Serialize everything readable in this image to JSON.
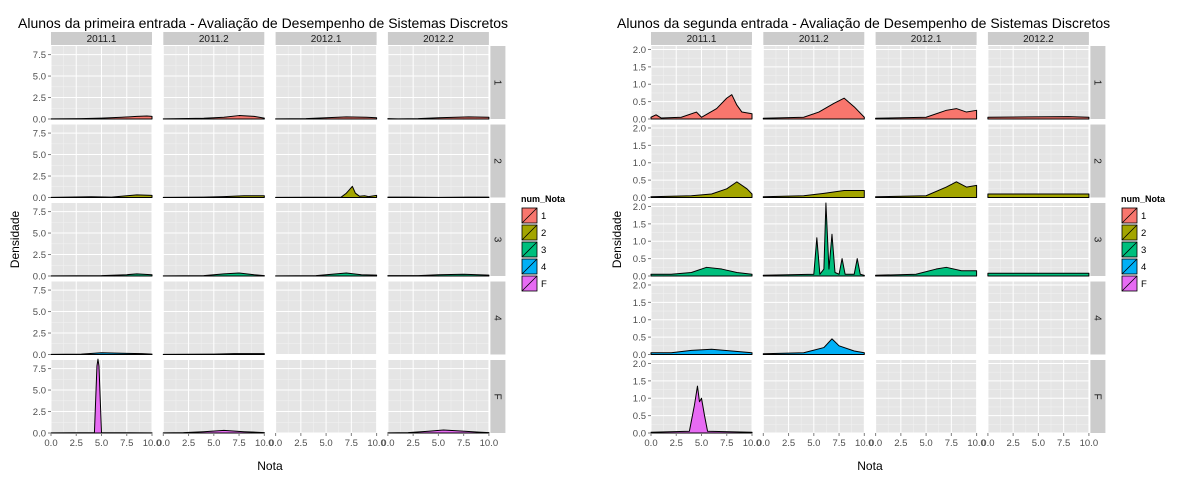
{
  "chart_data": [
    {
      "type": "area",
      "title": "Alunos da primeira entrada -  Avaliação de Desempenho de Sistemas Discretos",
      "xlabel": "Nota",
      "ylabel": "Densidade",
      "columns": [
        "2011.1",
        "2011.2",
        "2012.1",
        "2012.2"
      ],
      "rows": [
        "1",
        "2",
        "3",
        "4",
        "F"
      ],
      "xlim": [
        0,
        10
      ],
      "ylim": [
        0,
        8.5
      ],
      "x_ticks": [
        "0.0",
        "2.5",
        "5.0",
        "7.5",
        "10.0"
      ],
      "y_ticks": [
        "0.0",
        "2.5",
        "5.0",
        "7.5"
      ],
      "y_tick_values": [
        0,
        2.5,
        5,
        7.5
      ],
      "legend": {
        "title": "num_Nota",
        "position": "right",
        "items": [
          "1",
          "2",
          "3",
          "4",
          "F"
        ]
      },
      "grid": true,
      "panels": [
        {
          "col": 0,
          "row": 0,
          "points": [
            [
              0,
              0.02
            ],
            [
              3,
              0.05
            ],
            [
              5,
              0.1
            ],
            [
              7,
              0.2
            ],
            [
              8.5,
              0.3
            ],
            [
              9.5,
              0.35
            ],
            [
              10,
              0.3
            ]
          ]
        },
        {
          "col": 1,
          "row": 0,
          "points": [
            [
              0,
              0.02
            ],
            [
              4,
              0.08
            ],
            [
              6,
              0.2
            ],
            [
              7.5,
              0.4
            ],
            [
              9,
              0.3
            ],
            [
              10,
              0.1
            ]
          ]
        },
        {
          "col": 2,
          "row": 0,
          "points": [
            [
              0,
              0.02
            ],
            [
              3,
              0.05
            ],
            [
              5,
              0.15
            ],
            [
              7,
              0.25
            ],
            [
              9,
              0.2
            ],
            [
              10,
              0.15
            ]
          ]
        },
        {
          "col": 3,
          "row": 0,
          "points": [
            [
              0,
              0.05
            ],
            [
              1,
              0.02
            ],
            [
              3,
              0.05
            ],
            [
              5,
              0.15
            ],
            [
              8,
              0.25
            ],
            [
              10,
              0.2
            ]
          ]
        },
        {
          "col": 0,
          "row": 1,
          "points": [
            [
              0,
              0.02
            ],
            [
              4,
              0.08
            ],
            [
              6,
              0.05
            ],
            [
              7.5,
              0.2
            ],
            [
              8.5,
              0.3
            ],
            [
              10,
              0.25
            ]
          ]
        },
        {
          "col": 1,
          "row": 1,
          "points": [
            [
              0,
              0.02
            ],
            [
              4,
              0.05
            ],
            [
              6,
              0.1
            ],
            [
              8,
              0.2
            ],
            [
              10,
              0.2
            ]
          ]
        },
        {
          "col": 2,
          "row": 1,
          "points": [
            [
              0,
              0.02
            ],
            [
              6.5,
              0.05
            ],
            [
              7,
              0.5
            ],
            [
              7.3,
              0.9
            ],
            [
              7.6,
              1.3
            ],
            [
              7.9,
              0.5
            ],
            [
              8.3,
              0.15
            ],
            [
              8.8,
              0.2
            ],
            [
              9.2,
              0.1
            ],
            [
              10,
              0.25
            ]
          ]
        },
        {
          "col": 3,
          "row": 1,
          "points": [
            [
              0,
              0.05
            ],
            [
              2,
              0.05
            ],
            [
              5,
              0.02
            ],
            [
              8,
              0.05
            ],
            [
              10,
              0.05
            ]
          ]
        },
        {
          "col": 0,
          "row": 2,
          "points": [
            [
              0,
              0.02
            ],
            [
              5,
              0.05
            ],
            [
              7.5,
              0.15
            ],
            [
              8.5,
              0.25
            ],
            [
              10,
              0.15
            ]
          ]
        },
        {
          "col": 1,
          "row": 2,
          "points": [
            [
              0,
              0.02
            ],
            [
              4,
              0.05
            ],
            [
              6,
              0.25
            ],
            [
              7.5,
              0.35
            ],
            [
              9,
              0.15
            ],
            [
              10,
              0.05
            ]
          ]
        },
        {
          "col": 2,
          "row": 2,
          "points": [
            [
              0,
              0.02
            ],
            [
              4,
              0.05
            ],
            [
              6,
              0.25
            ],
            [
              7,
              0.35
            ],
            [
              8.5,
              0.15
            ],
            [
              10,
              0.1
            ]
          ]
        },
        {
          "col": 3,
          "row": 2,
          "points": [
            [
              0,
              0.05
            ],
            [
              3,
              0.05
            ],
            [
              5,
              0.15
            ],
            [
              7.5,
              0.2
            ],
            [
              10,
              0.1
            ]
          ]
        },
        {
          "col": 0,
          "row": 3,
          "points": [
            [
              0,
              0.02
            ],
            [
              3,
              0.05
            ],
            [
              5,
              0.2
            ],
            [
              7,
              0.15
            ],
            [
              9,
              0.1
            ],
            [
              10,
              0.05
            ]
          ]
        },
        {
          "col": 1,
          "row": 3,
          "points": [
            [
              0,
              0.02
            ],
            [
              5,
              0.05
            ],
            [
              7,
              0.1
            ],
            [
              10,
              0.1
            ]
          ]
        },
        {
          "col": 0,
          "row": 4,
          "points": [
            [
              0,
              0.02
            ],
            [
              4.3,
              0.05
            ],
            [
              4.55,
              7.8
            ],
            [
              4.65,
              8.6
            ],
            [
              4.75,
              7.8
            ],
            [
              5,
              0.05
            ],
            [
              10,
              0.02
            ]
          ]
        },
        {
          "col": 1,
          "row": 4,
          "points": [
            [
              0,
              0.02
            ],
            [
              2,
              0.05
            ],
            [
              4,
              0.15
            ],
            [
              6,
              0.3
            ],
            [
              8,
              0.15
            ],
            [
              10,
              0.05
            ]
          ]
        },
        {
          "col": 3,
          "row": 4,
          "points": [
            [
              0,
              0.02
            ],
            [
              2,
              0.05
            ],
            [
              4,
              0.2
            ],
            [
              5.5,
              0.35
            ],
            [
              7,
              0.25
            ],
            [
              9,
              0.1
            ],
            [
              10,
              0.05
            ]
          ]
        }
      ]
    },
    {
      "type": "area",
      "title": "Alunos da segunda entrada -  Avaliação de Desempenho de Sistemas Discretos",
      "xlabel": "Nota",
      "ylabel": "Densidade",
      "columns": [
        "2011.1",
        "2011.2",
        "2012.1",
        "2012.2"
      ],
      "rows": [
        "1",
        "2",
        "3",
        "4",
        "F"
      ],
      "xlim": [
        0,
        10
      ],
      "ylim": [
        0,
        2.1
      ],
      "x_ticks": [
        "0.0",
        "2.5",
        "5.0",
        "7.5",
        "10.0"
      ],
      "y_ticks": [
        "0.0",
        "0.5",
        "1.0",
        "1.5",
        "2.0"
      ],
      "y_tick_values": [
        0,
        0.5,
        1,
        1.5,
        2
      ],
      "legend": {
        "title": "num_Nota",
        "position": "right",
        "items": [
          "1",
          "2",
          "3",
          "4",
          "F"
        ]
      },
      "grid": true,
      "panels": [
        {
          "col": 0,
          "row": 0,
          "points": [
            [
              0,
              0.05
            ],
            [
              0.5,
              0.12
            ],
            [
              1,
              0.03
            ],
            [
              3,
              0.05
            ],
            [
              4.5,
              0.2
            ],
            [
              5,
              0.05
            ],
            [
              6.5,
              0.3
            ],
            [
              7.5,
              0.6
            ],
            [
              8,
              0.7
            ],
            [
              8.5,
              0.4
            ],
            [
              9,
              0.2
            ],
            [
              10,
              0.15
            ]
          ]
        },
        {
          "col": 1,
          "row": 0,
          "points": [
            [
              0,
              0.02
            ],
            [
              4,
              0.05
            ],
            [
              5.5,
              0.2
            ],
            [
              7,
              0.45
            ],
            [
              8,
              0.6
            ],
            [
              9,
              0.35
            ],
            [
              10,
              0.05
            ]
          ]
        },
        {
          "col": 2,
          "row": 0,
          "points": [
            [
              0,
              0.02
            ],
            [
              5,
              0.05
            ],
            [
              7,
              0.25
            ],
            [
              8,
              0.3
            ],
            [
              9,
              0.2
            ],
            [
              10,
              0.25
            ]
          ]
        },
        {
          "col": 3,
          "row": 0,
          "points": [
            [
              0,
              0.05
            ],
            [
              4,
              0.06
            ],
            [
              8,
              0.07
            ],
            [
              10,
              0.05
            ]
          ]
        },
        {
          "col": 0,
          "row": 1,
          "points": [
            [
              0,
              0.02
            ],
            [
              4,
              0.05
            ],
            [
              6,
              0.1
            ],
            [
              7.5,
              0.25
            ],
            [
              8.5,
              0.45
            ],
            [
              9.5,
              0.25
            ],
            [
              10,
              0.1
            ]
          ]
        },
        {
          "col": 1,
          "row": 1,
          "points": [
            [
              0,
              0.02
            ],
            [
              4,
              0.05
            ],
            [
              6,
              0.12
            ],
            [
              8,
              0.2
            ],
            [
              10,
              0.2
            ]
          ]
        },
        {
          "col": 2,
          "row": 1,
          "points": [
            [
              0,
              0.02
            ],
            [
              5,
              0.05
            ],
            [
              7,
              0.3
            ],
            [
              8,
              0.45
            ],
            [
              9,
              0.3
            ],
            [
              10,
              0.35
            ]
          ]
        },
        {
          "col": 3,
          "row": 1,
          "points": [
            [
              0,
              0.1
            ],
            [
              10,
              0.1
            ]
          ]
        },
        {
          "col": 0,
          "row": 2,
          "points": [
            [
              0,
              0.05
            ],
            [
              2,
              0.05
            ],
            [
              4,
              0.1
            ],
            [
              5.5,
              0.25
            ],
            [
              7,
              0.2
            ],
            [
              8.5,
              0.1
            ],
            [
              10,
              0.05
            ]
          ]
        },
        {
          "col": 1,
          "row": 2,
          "points": [
            [
              0,
              0.02
            ],
            [
              5,
              0.05
            ],
            [
              5.3,
              1.1
            ],
            [
              5.6,
              0.05
            ],
            [
              6,
              0.2
            ],
            [
              6.2,
              2.1
            ],
            [
              6.5,
              0.2
            ],
            [
              6.8,
              1.2
            ],
            [
              7.1,
              0.1
            ],
            [
              7.5,
              0.05
            ],
            [
              7.8,
              0.5
            ],
            [
              8.1,
              0.05
            ],
            [
              9,
              0.05
            ],
            [
              9.3,
              0.5
            ],
            [
              9.6,
              0.05
            ],
            [
              10,
              0.02
            ]
          ]
        },
        {
          "col": 2,
          "row": 2,
          "points": [
            [
              0,
              0.02
            ],
            [
              4,
              0.05
            ],
            [
              6,
              0.2
            ],
            [
              7,
              0.25
            ],
            [
              8.5,
              0.15
            ],
            [
              10,
              0.15
            ]
          ]
        },
        {
          "col": 3,
          "row": 2,
          "points": [
            [
              0,
              0.08
            ],
            [
              5,
              0.08
            ],
            [
              10,
              0.08
            ]
          ]
        },
        {
          "col": 0,
          "row": 3,
          "points": [
            [
              0,
              0.05
            ],
            [
              2,
              0.05
            ],
            [
              4,
              0.12
            ],
            [
              6,
              0.15
            ],
            [
              8,
              0.1
            ],
            [
              10,
              0.05
            ]
          ]
        },
        {
          "col": 1,
          "row": 3,
          "points": [
            [
              0,
              0.02
            ],
            [
              4,
              0.05
            ],
            [
              6,
              0.2
            ],
            [
              6.8,
              0.45
            ],
            [
              7.5,
              0.25
            ],
            [
              9,
              0.1
            ],
            [
              10,
              0.05
            ]
          ]
        },
        {
          "col": 0,
          "row": 4,
          "points": [
            [
              0,
              0.02
            ],
            [
              3.8,
              0.05
            ],
            [
              4.3,
              0.8
            ],
            [
              4.6,
              1.35
            ],
            [
              4.8,
              0.9
            ],
            [
              5,
              1.0
            ],
            [
              5.3,
              0.5
            ],
            [
              5.6,
              0.05
            ],
            [
              10,
              0.02
            ]
          ]
        }
      ]
    }
  ]
}
